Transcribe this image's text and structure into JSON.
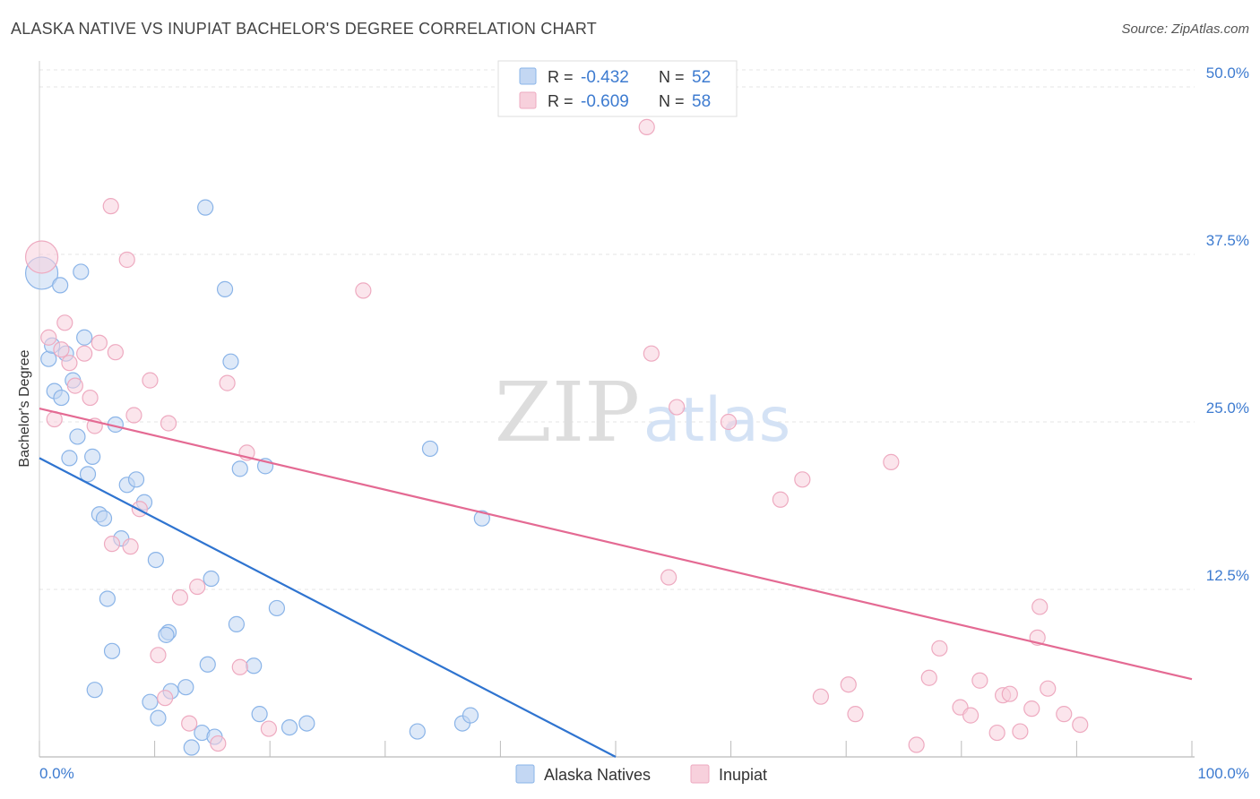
{
  "chart_data": {
    "type": "scatter",
    "title": "ALASKA NATIVE VS INUPIAT BACHELOR'S DEGREE CORRELATION CHART",
    "source": "Source: ZipAtlas.com",
    "xlabel": "",
    "ylabel": "Bachelor's Degree",
    "xlim": [
      0,
      100
    ],
    "ylim": [
      0,
      50
    ],
    "x_tick_labels": [
      "0.0%",
      "100.0%"
    ],
    "y_ticks": [
      12.5,
      25.0,
      37.5,
      50.0
    ],
    "y_tick_labels": [
      "12.5%",
      "25.0%",
      "37.5%",
      "50.0%"
    ],
    "grid": true,
    "watermark": {
      "zip": "ZIP",
      "atlas": "atlas"
    },
    "legend_position": "top-center",
    "series": [
      {
        "name": "Alaska Natives",
        "color": "#8ab4e8",
        "fill": "#c3d7f3",
        "line_color": "#2f74d0",
        "r_label": "R =",
        "r_value": "-0.432",
        "n_label": "N =",
        "n_value": "52",
        "trend": {
          "x": [
            0,
            50
          ],
          "y": [
            22.3,
            0
          ]
        },
        "points": [
          [
            0.2,
            36.1
          ],
          [
            0.8,
            29.7
          ],
          [
            1.1,
            30.7
          ],
          [
            1.3,
            27.3
          ],
          [
            1.8,
            35.2
          ],
          [
            1.9,
            26.8
          ],
          [
            2.3,
            30.1
          ],
          [
            2.6,
            22.3
          ],
          [
            2.9,
            28.1
          ],
          [
            3.3,
            23.9
          ],
          [
            3.6,
            36.2
          ],
          [
            3.9,
            31.3
          ],
          [
            4.2,
            21.1
          ],
          [
            4.6,
            22.4
          ],
          [
            5.2,
            18.1
          ],
          [
            5.6,
            17.8
          ],
          [
            5.9,
            11.8
          ],
          [
            6.3,
            7.9
          ],
          [
            6.6,
            24.8
          ],
          [
            7.1,
            16.3
          ],
          [
            7.6,
            20.3
          ],
          [
            8.4,
            20.7
          ],
          [
            9.1,
            19.0
          ],
          [
            9.6,
            4.1
          ],
          [
            10.1,
            14.7
          ],
          [
            10.3,
            2.9
          ],
          [
            11.2,
            9.3
          ],
          [
            11.4,
            4.9
          ],
          [
            12.7,
            5.2
          ],
          [
            13.2,
            0.7
          ],
          [
            14.1,
            1.8
          ],
          [
            14.4,
            41.0
          ],
          [
            14.6,
            6.9
          ],
          [
            14.9,
            13.3
          ],
          [
            15.2,
            1.5
          ],
          [
            16.1,
            34.9
          ],
          [
            16.6,
            29.5
          ],
          [
            17.1,
            9.9
          ],
          [
            17.4,
            21.5
          ],
          [
            18.6,
            6.8
          ],
          [
            19.1,
            3.2
          ],
          [
            19.6,
            21.7
          ],
          [
            20.6,
            11.1
          ],
          [
            21.7,
            2.2
          ],
          [
            23.2,
            2.5
          ],
          [
            32.8,
            1.9
          ],
          [
            33.9,
            23.0
          ],
          [
            36.7,
            2.5
          ],
          [
            37.4,
            3.1
          ],
          [
            38.4,
            17.8
          ],
          [
            4.8,
            5.0
          ],
          [
            11.0,
            9.1
          ]
        ]
      },
      {
        "name": "Inupiat",
        "color": "#eeaac0",
        "fill": "#f7d0dc",
        "line_color": "#e46a93",
        "r_label": "R =",
        "r_value": "-0.609",
        "n_label": "N =",
        "n_value": "58",
        "trend": {
          "x": [
            0,
            100
          ],
          "y": [
            26.0,
            5.8
          ]
        },
        "points": [
          [
            0.2,
            37.3
          ],
          [
            0.8,
            31.3
          ],
          [
            1.3,
            25.2
          ],
          [
            1.9,
            30.4
          ],
          [
            2.2,
            32.4
          ],
          [
            2.6,
            29.4
          ],
          [
            3.1,
            27.7
          ],
          [
            3.9,
            30.1
          ],
          [
            4.4,
            26.8
          ],
          [
            4.8,
            24.7
          ],
          [
            5.2,
            30.9
          ],
          [
            6.2,
            41.1
          ],
          [
            6.3,
            15.9
          ],
          [
            6.6,
            30.2
          ],
          [
            7.6,
            37.1
          ],
          [
            7.9,
            15.7
          ],
          [
            8.2,
            25.5
          ],
          [
            8.7,
            18.5
          ],
          [
            9.6,
            28.1
          ],
          [
            10.3,
            7.6
          ],
          [
            10.9,
            4.4
          ],
          [
            11.2,
            24.9
          ],
          [
            12.2,
            11.9
          ],
          [
            13.0,
            2.5
          ],
          [
            13.7,
            12.7
          ],
          [
            15.5,
            1.0
          ],
          [
            16.3,
            27.9
          ],
          [
            17.4,
            6.7
          ],
          [
            18.0,
            22.7
          ],
          [
            19.9,
            2.1
          ],
          [
            28.1,
            34.8
          ],
          [
            52.7,
            47.0
          ],
          [
            53.1,
            30.1
          ],
          [
            54.6,
            13.4
          ],
          [
            55.3,
            26.1
          ],
          [
            59.8,
            25.0
          ],
          [
            64.3,
            19.2
          ],
          [
            66.2,
            20.7
          ],
          [
            67.8,
            4.5
          ],
          [
            70.2,
            5.4
          ],
          [
            70.8,
            3.2
          ],
          [
            73.9,
            22.0
          ],
          [
            76.1,
            0.9
          ],
          [
            77.2,
            5.9
          ],
          [
            78.1,
            8.1
          ],
          [
            79.9,
            3.7
          ],
          [
            80.8,
            3.1
          ],
          [
            81.6,
            5.7
          ],
          [
            83.1,
            1.8
          ],
          [
            83.6,
            4.6
          ],
          [
            84.2,
            4.7
          ],
          [
            85.1,
            1.9
          ],
          [
            86.1,
            3.6
          ],
          [
            86.6,
            8.9
          ],
          [
            86.8,
            11.2
          ],
          [
            87.5,
            5.1
          ],
          [
            88.9,
            3.2
          ],
          [
            90.3,
            2.4
          ]
        ]
      }
    ]
  }
}
